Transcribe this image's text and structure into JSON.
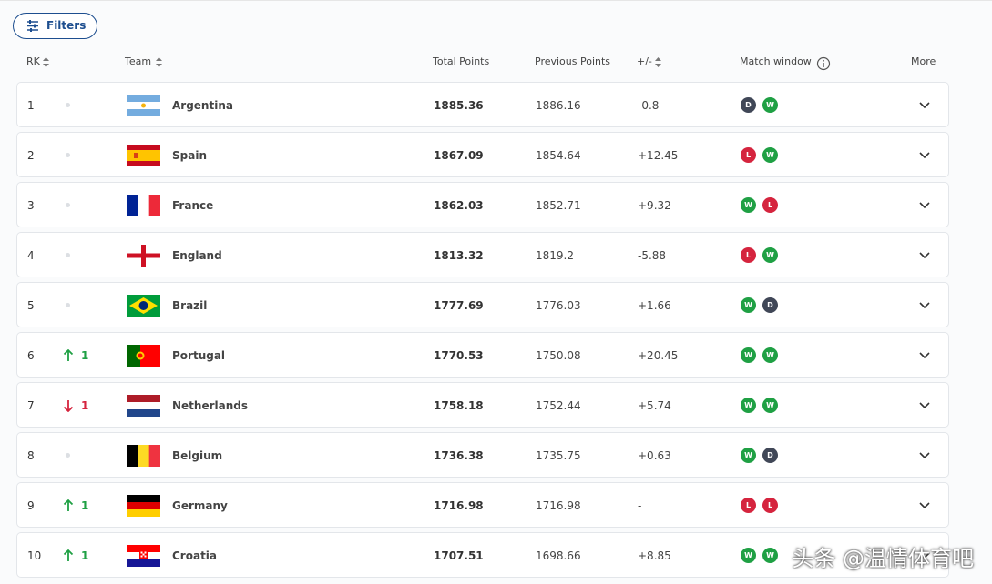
{
  "filters": "Filters",
  "headers": {
    "rank": "RK",
    "team": "Team",
    "total": "Total Points",
    "previous": "Previous Points",
    "diff": "+/-",
    "window": "Match window",
    "more": "More"
  },
  "rows": [
    {
      "rank": "1",
      "change": null,
      "team": "Argentina",
      "total": "1885.36",
      "previous": "1886.16",
      "diff": "-0.8",
      "window": [
        "D",
        "W"
      ]
    },
    {
      "rank": "2",
      "change": null,
      "team": "Spain",
      "total": "1867.09",
      "previous": "1854.64",
      "diff": "+12.45",
      "window": [
        "L",
        "W"
      ]
    },
    {
      "rank": "3",
      "change": null,
      "team": "France",
      "total": "1862.03",
      "previous": "1852.71",
      "diff": "+9.32",
      "window": [
        "W",
        "L"
      ]
    },
    {
      "rank": "4",
      "change": null,
      "team": "England",
      "total": "1813.32",
      "previous": "1819.2",
      "diff": "-5.88",
      "window": [
        "L",
        "W"
      ]
    },
    {
      "rank": "5",
      "change": null,
      "team": "Brazil",
      "total": "1777.69",
      "previous": "1776.03",
      "diff": "+1.66",
      "window": [
        "W",
        "D"
      ]
    },
    {
      "rank": "6",
      "change": {
        "direction": "up",
        "text": "1"
      },
      "team": "Portugal",
      "total": "1770.53",
      "previous": "1750.08",
      "diff": "+20.45",
      "window": [
        "W",
        "W"
      ]
    },
    {
      "rank": "7",
      "change": {
        "direction": "down",
        "text": "1"
      },
      "team": "Netherlands",
      "total": "1758.18",
      "previous": "1752.44",
      "diff": "+5.74",
      "window": [
        "W",
        "W"
      ]
    },
    {
      "rank": "8",
      "change": null,
      "team": "Belgium",
      "total": "1736.38",
      "previous": "1735.75",
      "diff": "+0.63",
      "window": [
        "W",
        "D"
      ]
    },
    {
      "rank": "9",
      "change": {
        "direction": "up",
        "text": "1"
      },
      "team": "Germany",
      "total": "1716.98",
      "previous": "1716.98",
      "diff": "-",
      "window": [
        "L",
        "L"
      ]
    },
    {
      "rank": "10",
      "change": {
        "direction": "up",
        "text": "1"
      },
      "team": "Croatia",
      "total": "1707.51",
      "previous": "1698.66",
      "diff": "+8.85",
      "window": [
        "W",
        "W"
      ]
    }
  ],
  "watermark": "头条 @温情体育吧"
}
